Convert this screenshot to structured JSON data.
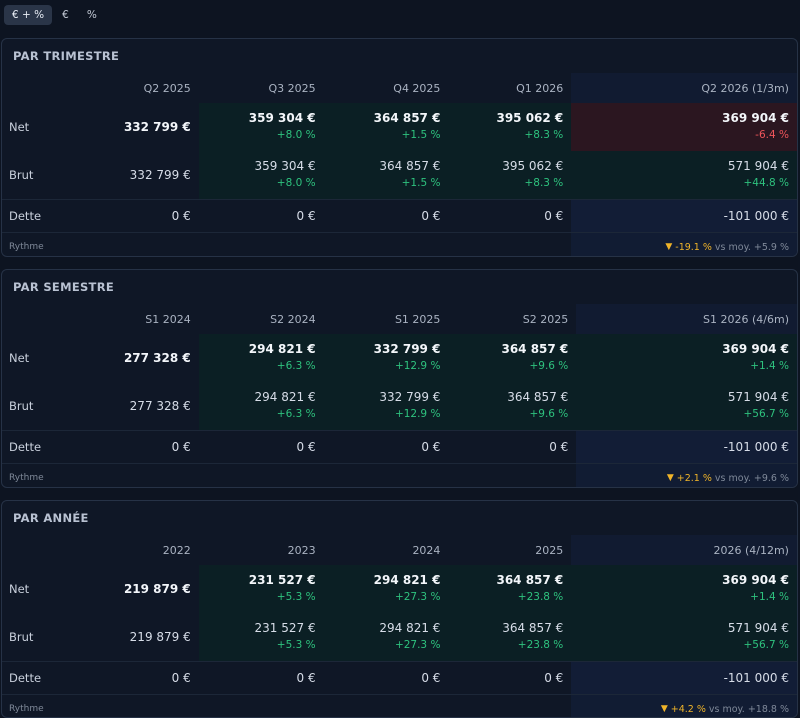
{
  "toolbar": {
    "buttons": [
      {
        "label": "€ + %",
        "active": true
      },
      {
        "label": "€",
        "active": false
      },
      {
        "label": "%",
        "active": false
      }
    ]
  },
  "colors": {
    "positive": "#2ec27e",
    "negative": "#f0555a",
    "warning": "#f0b429"
  },
  "panels": [
    {
      "title": "PAR TRIMESTRE",
      "columns": [
        "Q2 2025",
        "Q3 2025",
        "Q4 2025",
        "Q1 2026",
        "Q2 2026 (1/3m)"
      ],
      "net": {
        "label": "Net",
        "values": [
          "332 799 €",
          "359 304 €",
          "364 857 €",
          "395 062 €",
          "369 904 €"
        ],
        "pcts": [
          "",
          "+8.0 %",
          "+1.5 %",
          "+8.3 %",
          "-6.4 %"
        ]
      },
      "brut": {
        "label": "Brut",
        "values": [
          "332 799 €",
          "359 304 €",
          "364 857 €",
          "395 062 €",
          "571 904 €"
        ],
        "pcts": [
          "",
          "+8.0 %",
          "+1.5 %",
          "+8.3 %",
          "+44.8 %"
        ]
      },
      "dette": {
        "label": "Dette",
        "values": [
          "0 €",
          "0 €",
          "0 €",
          "0 €",
          "-101 000 €"
        ]
      },
      "rythme": {
        "label": "Rythme",
        "pct": "-19.1 %",
        "rest": "vs moy. +5.9 %"
      }
    },
    {
      "title": "PAR SEMESTRE",
      "columns": [
        "S1 2024",
        "S2 2024",
        "S1 2025",
        "S2 2025",
        "S1 2026 (4/6m)"
      ],
      "net": {
        "label": "Net",
        "values": [
          "277 328 €",
          "294 821 €",
          "332 799 €",
          "364 857 €",
          "369 904 €"
        ],
        "pcts": [
          "",
          "+6.3 %",
          "+12.9 %",
          "+9.6 %",
          "+1.4 %"
        ]
      },
      "brut": {
        "label": "Brut",
        "values": [
          "277 328 €",
          "294 821 €",
          "332 799 €",
          "364 857 €",
          "571 904 €"
        ],
        "pcts": [
          "",
          "+6.3 %",
          "+12.9 %",
          "+9.6 %",
          "+56.7 %"
        ]
      },
      "dette": {
        "label": "Dette",
        "values": [
          "0 €",
          "0 €",
          "0 €",
          "0 €",
          "-101 000 €"
        ]
      },
      "rythme": {
        "label": "Rythme",
        "pct": "+2.1 %",
        "rest": "vs moy. +9.6 %"
      }
    },
    {
      "title": "PAR ANNÉE",
      "columns": [
        "2022",
        "2023",
        "2024",
        "2025",
        "2026 (4/12m)"
      ],
      "net": {
        "label": "Net",
        "values": [
          "219 879 €",
          "231 527 €",
          "294 821 €",
          "364 857 €",
          "369 904 €"
        ],
        "pcts": [
          "",
          "+5.3 %",
          "+27.3 %",
          "+23.8 %",
          "+1.4 %"
        ]
      },
      "brut": {
        "label": "Brut",
        "values": [
          "219 879 €",
          "231 527 €",
          "294 821 €",
          "364 857 €",
          "571 904 €"
        ],
        "pcts": [
          "",
          "+5.3 %",
          "+27.3 %",
          "+23.8 %",
          "+56.7 %"
        ]
      },
      "dette": {
        "label": "Dette",
        "values": [
          "0 €",
          "0 €",
          "0 €",
          "0 €",
          "-101 000 €"
        ]
      },
      "rythme": {
        "label": "Rythme",
        "pct": "+4.2 %",
        "rest": "vs moy. +18.8 %"
      }
    }
  ]
}
